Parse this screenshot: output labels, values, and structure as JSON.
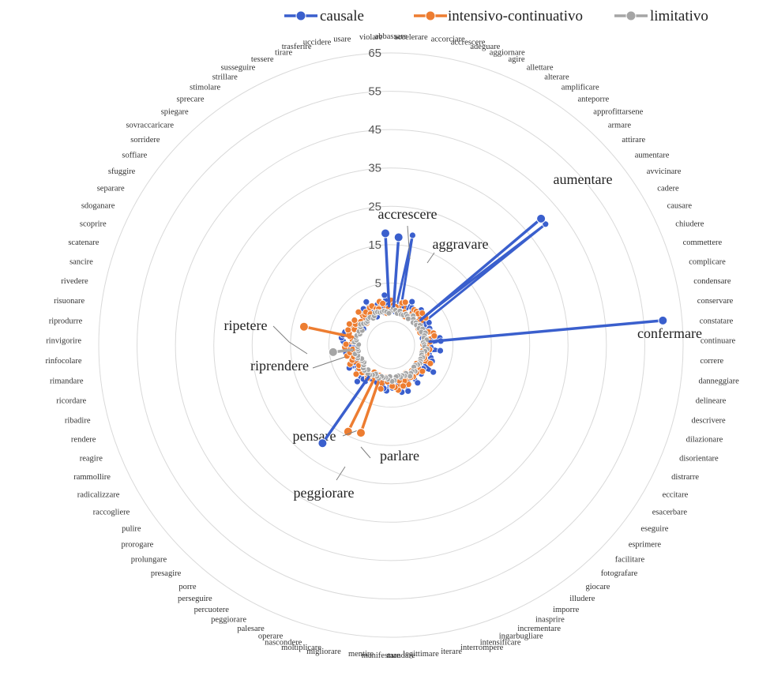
{
  "chart_data": {
    "type": "radar",
    "title": "",
    "legend_position": "top",
    "rlim": [
      -5,
      65
    ],
    "r_ticks": [
      5,
      15,
      25,
      35,
      45,
      55,
      65
    ],
    "series": [
      {
        "name": "causale",
        "color": "#3a5fcd"
      },
      {
        "name": "intensivo-continuativo",
        "color": "#ed7d31"
      },
      {
        "name": "limitativo",
        "color": "#a5a5a5"
      }
    ],
    "categories": [
      "abbassare",
      "accelerare",
      "accorciare",
      "accrescere",
      "adeguare",
      "aggiornare",
      "agire",
      "allettare",
      "alterare",
      "amplificare",
      "anteporre",
      "approfittarsene",
      "armare",
      "attirare",
      "aumentare",
      "avvicinare",
      "cadere",
      "causare",
      "chiudere",
      "commettere",
      "complicare",
      "condensare",
      "conservare",
      "constatare",
      "continuare",
      "correre",
      "danneggiare",
      "delineare",
      "descrivere",
      "dilazionare",
      "disorientare",
      "distrarre",
      "eccitare",
      "esacerbare",
      "eseguire",
      "esprimere",
      "facilitare",
      "fotografare",
      "giocare",
      "illudere",
      "imporre",
      "inasprire",
      "incrementare",
      "ingarbugliare",
      "intensificare",
      "interrompere",
      "iterare",
      "legittimare",
      "mandare",
      "manifestare",
      "mentire",
      "migliorare",
      "moltiplicare",
      "nascondere",
      "operare",
      "palesare",
      "peggiorare",
      "percuotere",
      "perseguire",
      "porre",
      "presagire",
      "prolungare",
      "prorogare",
      "pulire",
      "raccogliere",
      "radicalizzare",
      "rammollire",
      "reagire",
      "rendere",
      "ribadire",
      "ricordare",
      "rimandare",
      "rinfocolare",
      "rinvigorire",
      "riprodurre",
      "risuonare",
      "rivedere",
      "sancire",
      "scatenare",
      "scoprire",
      "sdoganare",
      "separare",
      "sfuggire",
      "soffiare",
      "sorridere",
      "sovraccaricare",
      "spiegare",
      "sprecare",
      "stimolare",
      "strillare",
      "susseguire",
      "tessere",
      "tirare",
      "trasferire",
      "uccidere",
      "usare",
      "violare"
    ],
    "annotations": [
      {
        "label": "aumentare",
        "series": "causale",
        "value": 40
      },
      {
        "label": "confermare",
        "series": "causale",
        "value": 60
      },
      {
        "label": "accrescere",
        "series": "causale",
        "value": 18
      },
      {
        "label": "aggravare",
        "series": "causale",
        "value": 17
      },
      {
        "label": "ripetere",
        "series": "intensivo-continuativo",
        "value": 12
      },
      {
        "label": "riprendere",
        "series": "limitativo",
        "value": 4
      },
      {
        "label": "pensare",
        "series": "intensivo-continuativo",
        "value": 14
      },
      {
        "label": "parlare",
        "series": "intensivo-continuativo",
        "value": 13
      },
      {
        "label": "peggiorare",
        "series": "causale",
        "value": 20
      }
    ]
  }
}
